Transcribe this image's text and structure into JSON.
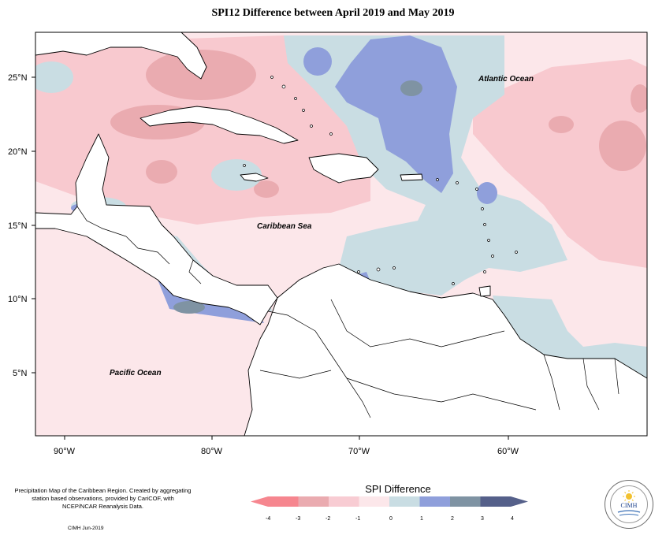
{
  "title": "SPI12 Difference between April 2019 and May 2019",
  "map": {
    "lat_labels": [
      "25°N",
      "20°N",
      "15°N",
      "10°N",
      "5°N"
    ],
    "lon_labels": [
      "90°W",
      "80°W",
      "70°W",
      "60°W"
    ],
    "place_names": {
      "atlantic": "Atlantic Ocean",
      "caribbean": "Caribbean Sea",
      "pacific": "Pacific Ocean"
    },
    "colors": {
      "ocean_neutral": "#fce7ea",
      "pink_light": "#f8c9cf",
      "pink_mid": "#eaabb0",
      "blue_light": "#c9dde3",
      "blue_mid": "#8f9fdb",
      "blue_dark": "#7f93a3"
    }
  },
  "legend": {
    "title": "SPI Difference",
    "tick_labels": [
      "-4",
      "-3",
      "-2",
      "-1",
      "0",
      "1",
      "2",
      "3",
      "4"
    ],
    "colors": [
      "#f6868f",
      "#eaabb0",
      "#f8ccd3",
      "#fce7ea",
      "#c9dde3",
      "#8f9fdb",
      "#7f93a3",
      "#55608a"
    ]
  },
  "credits": {
    "text": "Precipitation Map of the Caribbean Region. Created by aggregating station based observations, provided by CariCOF, with NCEP/NCAR Reanalysis Data.",
    "date": "CIMH  Jun-2019"
  },
  "logo": {
    "text": "CIMH"
  }
}
